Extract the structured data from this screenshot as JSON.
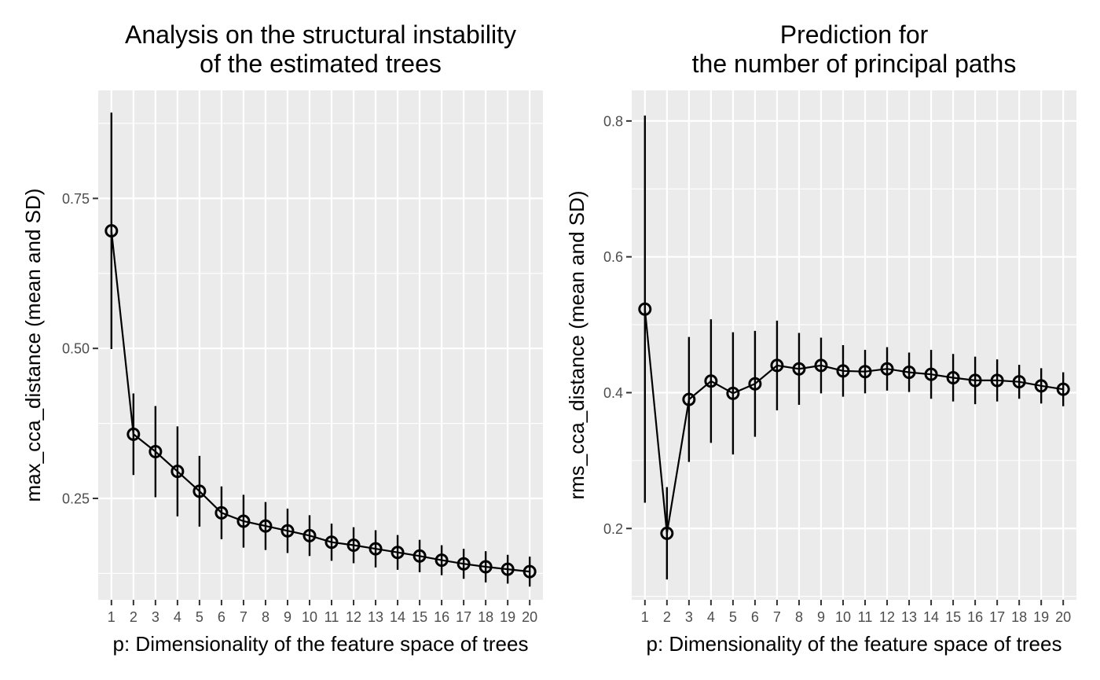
{
  "chart_data": [
    {
      "type": "line",
      "title_lines": [
        "Analysis on the structural instability",
        "of the estimated trees"
      ],
      "xlabel": "p: Dimensionality of the feature space of trees",
      "ylabel": "max_cca_distance (mean and SD)",
      "x": [
        1,
        2,
        3,
        4,
        5,
        6,
        7,
        8,
        9,
        10,
        11,
        12,
        13,
        14,
        15,
        16,
        17,
        18,
        19,
        20
      ],
      "x_tick_labels": [
        "1",
        "2",
        "3",
        "4",
        "5",
        "6",
        "7",
        "8",
        "9",
        "10",
        "11",
        "12",
        "13",
        "14",
        "15",
        "16",
        "17",
        "18",
        "19",
        "20"
      ],
      "series": [
        {
          "mean": [
            0.696,
            0.357,
            0.328,
            0.295,
            0.262,
            0.226,
            0.212,
            0.204,
            0.196,
            0.188,
            0.177,
            0.172,
            0.166,
            0.16,
            0.154,
            0.147,
            0.141,
            0.136,
            0.132,
            0.128
          ],
          "sd": [
            0.197,
            0.068,
            0.076,
            0.075,
            0.059,
            0.044,
            0.044,
            0.04,
            0.037,
            0.034,
            0.031,
            0.03,
            0.031,
            0.029,
            0.027,
            0.025,
            0.025,
            0.026,
            0.024,
            0.025
          ]
        }
      ],
      "y_ticks": [
        0.25,
        0.5,
        0.75
      ],
      "y_tick_labels": [
        "0.25",
        "0.50",
        "0.75"
      ],
      "ylim": [
        0.081,
        0.93
      ],
      "grid": true,
      "legend": false
    },
    {
      "type": "line",
      "title_lines": [
        "Prediction for",
        "the number of principal paths"
      ],
      "xlabel": "p: Dimensionality of the feature space of trees",
      "ylabel": "rms_cca_distance (mean and SD)",
      "x": [
        1,
        2,
        3,
        4,
        5,
        6,
        7,
        8,
        9,
        10,
        11,
        12,
        13,
        14,
        15,
        16,
        17,
        18,
        19,
        20
      ],
      "x_tick_labels": [
        "1",
        "2",
        "3",
        "4",
        "5",
        "6",
        "7",
        "8",
        "9",
        "10",
        "11",
        "12",
        "13",
        "14",
        "15",
        "16",
        "17",
        "18",
        "19",
        "20"
      ],
      "series": [
        {
          "mean": [
            0.523,
            0.193,
            0.39,
            0.417,
            0.399,
            0.413,
            0.44,
            0.435,
            0.44,
            0.432,
            0.431,
            0.435,
            0.43,
            0.427,
            0.422,
            0.418,
            0.418,
            0.416,
            0.41,
            0.405
          ],
          "sd": [
            0.285,
            0.068,
            0.092,
            0.091,
            0.09,
            0.078,
            0.066,
            0.053,
            0.041,
            0.038,
            0.032,
            0.032,
            0.029,
            0.036,
            0.035,
            0.035,
            0.031,
            0.025,
            0.026,
            0.025
          ]
        }
      ],
      "y_ticks": [
        0.2,
        0.4,
        0.6,
        0.8
      ],
      "y_tick_labels": [
        "0.2",
        "0.4",
        "0.6",
        "0.8"
      ],
      "ylim": [
        0.095,
        0.845
      ],
      "grid": true,
      "legend": false
    }
  ]
}
